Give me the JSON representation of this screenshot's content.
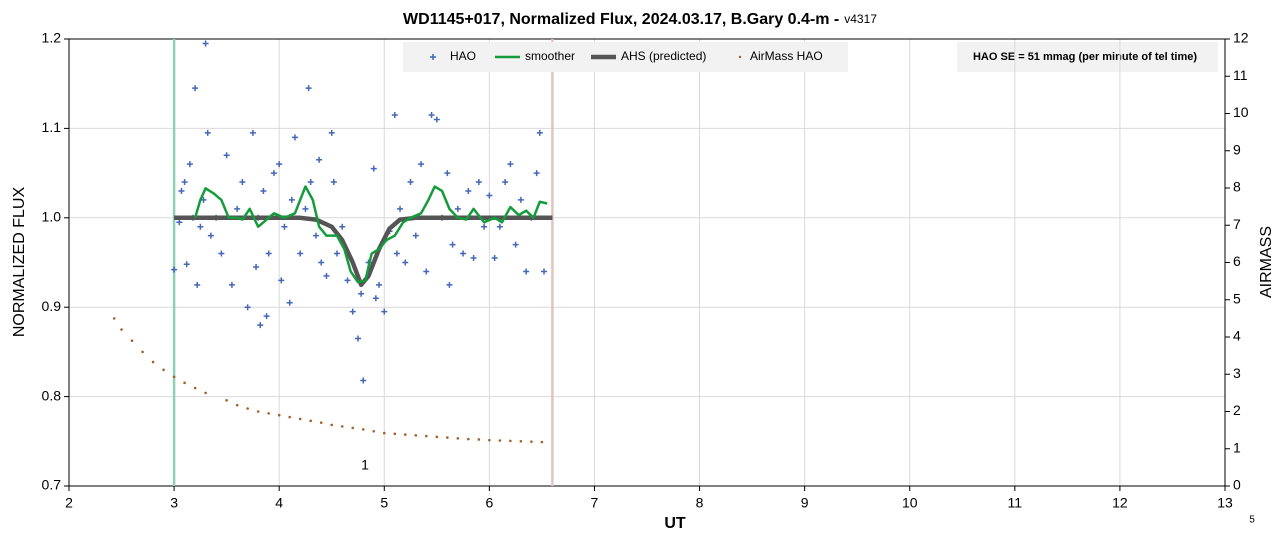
{
  "chart_data": {
    "type": "scatter",
    "title": "WD1145+017, Normalized Flux, 2024.03.17, B.Gary 0.4-m -",
    "subtitle": "v4317",
    "x_label": "UT",
    "y_label": "NORMALIZED FLUX",
    "y2_label": "AIRMASS",
    "annotations": [
      "HAO SE = 51 mmag (per minute of tel time)",
      "1",
      "5"
    ],
    "xlim": [
      2,
      13
    ],
    "xticks": [
      2,
      3,
      4,
      5,
      6,
      7,
      8,
      9,
      10,
      11,
      12,
      13
    ],
    "ylim": [
      0.7,
      1.2
    ],
    "yticks": [
      0.7,
      0.8,
      0.9,
      {
        "value": 1.0,
        "label": "1.0"
      },
      1.1,
      1.2
    ],
    "y2lim": [
      0,
      12
    ],
    "y2ticks": [
      0,
      1,
      2,
      3,
      4,
      5,
      6,
      7,
      8,
      9,
      10,
      11,
      12
    ],
    "grid": true,
    "vlines": [
      {
        "x": 3,
        "color": "#8fcfb4"
      },
      {
        "x": 6.6,
        "color": "#e0c4c0"
      }
    ],
    "series": [
      {
        "name": "HAO",
        "kind": "marker",
        "color": "#4466bb",
        "x": [
          3.0,
          3.05,
          3.07,
          3.1,
          3.12,
          3.15,
          3.18,
          3.2,
          3.22,
          3.25,
          3.28,
          3.3,
          3.32,
          3.35,
          3.4,
          3.45,
          3.5,
          3.55,
          3.6,
          3.65,
          3.7,
          3.75,
          3.78,
          3.8,
          3.82,
          3.85,
          3.88,
          3.9,
          3.95,
          4.0,
          4.02,
          4.05,
          4.1,
          4.12,
          4.15,
          4.2,
          4.25,
          4.28,
          4.3,
          4.35,
          4.38,
          4.4,
          4.45,
          4.5,
          4.52,
          4.55,
          4.6,
          4.65,
          4.7,
          4.75,
          4.78,
          4.8,
          4.85,
          4.9,
          4.92,
          4.95,
          5.0,
          5.05,
          5.1,
          5.12,
          5.15,
          5.2,
          5.25,
          5.3,
          5.35,
          5.4,
          5.45,
          5.5,
          5.55,
          5.6,
          5.62,
          5.65,
          5.7,
          5.75,
          5.8,
          5.85,
          5.9,
          5.95,
          6.0,
          6.05,
          6.1,
          6.15,
          6.2,
          6.25,
          6.3,
          6.35,
          6.4,
          6.45,
          6.48,
          6.52
        ],
        "y": [
          0.942,
          0.995,
          1.03,
          1.04,
          0.948,
          1.06,
          1.0,
          1.145,
          0.925,
          0.99,
          1.02,
          1.195,
          1.095,
          0.98,
          1.0,
          0.96,
          1.07,
          0.925,
          1.01,
          1.04,
          0.9,
          1.095,
          0.945,
          1.0,
          0.88,
          1.03,
          0.89,
          0.96,
          1.05,
          1.06,
          0.93,
          0.99,
          0.905,
          1.02,
          1.09,
          0.96,
          1.01,
          1.145,
          1.04,
          0.98,
          1.065,
          0.95,
          0.935,
          1.095,
          1.04,
          0.96,
          0.99,
          0.93,
          0.895,
          0.865,
          0.915,
          0.818,
          0.95,
          1.055,
          0.91,
          0.925,
          0.895,
          0.985,
          1.115,
          0.96,
          1.01,
          0.95,
          1.04,
          0.98,
          1.06,
          0.94,
          1.115,
          1.11,
          1.0,
          1.05,
          0.925,
          0.97,
          1.01,
          0.96,
          1.03,
          0.955,
          1.04,
          0.99,
          1.025,
          0.955,
          0.99,
          1.04,
          1.06,
          0.97,
          1.02,
          0.94,
          1.0,
          1.05,
          1.095,
          0.94
        ]
      },
      {
        "name": "smoother",
        "kind": "line",
        "color": "#149c3c",
        "x": [
          3.2,
          3.25,
          3.3,
          3.38,
          3.45,
          3.52,
          3.6,
          3.65,
          3.72,
          3.8,
          3.85,
          3.95,
          4.05,
          4.15,
          4.25,
          4.32,
          4.38,
          4.45,
          4.55,
          4.62,
          4.68,
          4.75,
          4.82,
          4.88,
          4.95,
          5.02,
          5.1,
          5.18,
          5.25,
          5.35,
          5.42,
          5.48,
          5.55,
          5.62,
          5.7,
          5.78,
          5.85,
          5.95,
          6.05,
          6.12,
          6.2,
          6.28,
          6.35,
          6.42,
          6.48,
          6.55
        ],
        "y": [
          1.0,
          1.02,
          1.033,
          1.027,
          1.02,
          1.0,
          1.0,
          0.998,
          1.01,
          0.99,
          0.995,
          1.005,
          1.0,
          1.005,
          1.035,
          1.02,
          0.99,
          0.98,
          0.98,
          0.965,
          0.94,
          0.928,
          0.93,
          0.96,
          0.965,
          0.975,
          0.98,
          0.995,
          1.0,
          1.005,
          1.02,
          1.035,
          1.03,
          1.01,
          1.0,
          0.998,
          1.01,
          0.995,
          1.0,
          0.995,
          1.012,
          1.003,
          1.008,
          1.0,
          1.018,
          1.016
        ]
      },
      {
        "name": "AHS (predicted)",
        "kind": "thickline",
        "color": "#555555",
        "x": [
          3.0,
          4.2,
          4.35,
          4.5,
          4.6,
          4.7,
          4.78,
          4.85,
          4.95,
          5.05,
          5.15,
          5.3,
          6.6
        ],
        "y": [
          1.0,
          1.0,
          0.998,
          0.99,
          0.975,
          0.95,
          0.925,
          0.935,
          0.965,
          0.988,
          0.998,
          1.0,
          1.0
        ]
      },
      {
        "name": "AirMass HAO",
        "kind": "dot",
        "color": "#a0622d",
        "axis": "y2",
        "x": [
          2.43,
          2.5,
          2.6,
          2.7,
          2.8,
          2.9,
          3.0,
          3.1,
          3.2,
          3.3,
          3.5,
          3.6,
          3.7,
          3.8,
          3.9,
          4.0,
          4.1,
          4.2,
          4.3,
          4.4,
          4.5,
          4.6,
          4.7,
          4.8,
          4.9,
          5.0,
          5.1,
          5.2,
          5.3,
          5.4,
          5.5,
          5.6,
          5.7,
          5.8,
          5.9,
          6.0,
          6.1,
          6.2,
          6.3,
          6.4,
          6.5
        ],
        "y": [
          4.5,
          4.2,
          3.9,
          3.6,
          3.33,
          3.12,
          2.93,
          2.77,
          2.63,
          2.5,
          2.3,
          2.17,
          2.08,
          2.0,
          1.95,
          1.9,
          1.85,
          1.8,
          1.75,
          1.7,
          1.64,
          1.6,
          1.56,
          1.52,
          1.47,
          1.42,
          1.4,
          1.38,
          1.36,
          1.34,
          1.32,
          1.3,
          1.28,
          1.26,
          1.25,
          1.23,
          1.22,
          1.21,
          1.2,
          1.19,
          1.18
        ]
      }
    ]
  }
}
